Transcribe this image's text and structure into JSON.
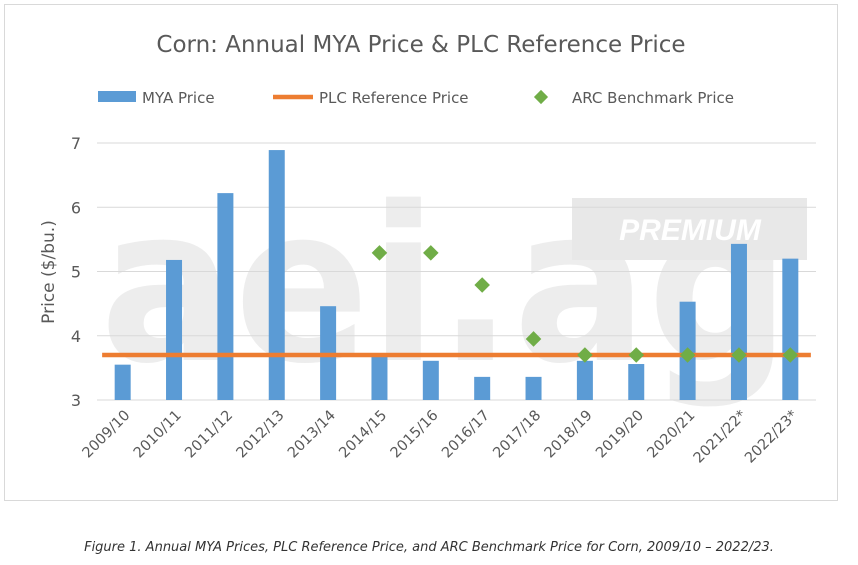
{
  "chart_data": {
    "type": "bar",
    "title": "Corn: Annual MYA Price & PLC Reference Price",
    "ylabel": "Price ($/bu.)",
    "xlabel": "",
    "ylim": [
      3,
      7
    ],
    "yticks": [
      3,
      4,
      5,
      6,
      7
    ],
    "grid": true,
    "legend_position": "top",
    "categories": [
      "2009/10",
      "2010/11",
      "2011/12",
      "2012/13",
      "2013/14",
      "2014/15",
      "2015/16",
      "2016/17",
      "2017/18",
      "2018/19",
      "2019/20",
      "2020/21",
      "2021/22*",
      "2022/23*"
    ],
    "series": [
      {
        "name": "MYA Price",
        "type": "bar",
        "color": "#5b9bd5",
        "values": [
          3.55,
          5.18,
          6.22,
          6.89,
          4.46,
          3.7,
          3.61,
          3.36,
          3.36,
          3.61,
          3.56,
          4.53,
          5.43,
          5.2
        ]
      },
      {
        "name": "PLC Reference Price",
        "type": "line",
        "color": "#ed7d31",
        "values": [
          3.7,
          3.7,
          3.7,
          3.7,
          3.7,
          3.7,
          3.7,
          3.7,
          3.7,
          3.7,
          3.7,
          3.7,
          3.7,
          3.7
        ]
      },
      {
        "name": "ARC Benchmark Price",
        "type": "scatter",
        "color": "#70ad47",
        "values": [
          null,
          null,
          null,
          null,
          null,
          5.29,
          5.29,
          4.79,
          3.95,
          3.7,
          3.7,
          3.7,
          3.7,
          3.7
        ]
      }
    ]
  },
  "watermark": {
    "main": "aei.ag",
    "badge": "PREMIUM"
  },
  "caption": "Figure 1. Annual MYA Prices, PLC Reference Price, and ARC Benchmark Price for Corn, 2009/10 – 2022/23."
}
